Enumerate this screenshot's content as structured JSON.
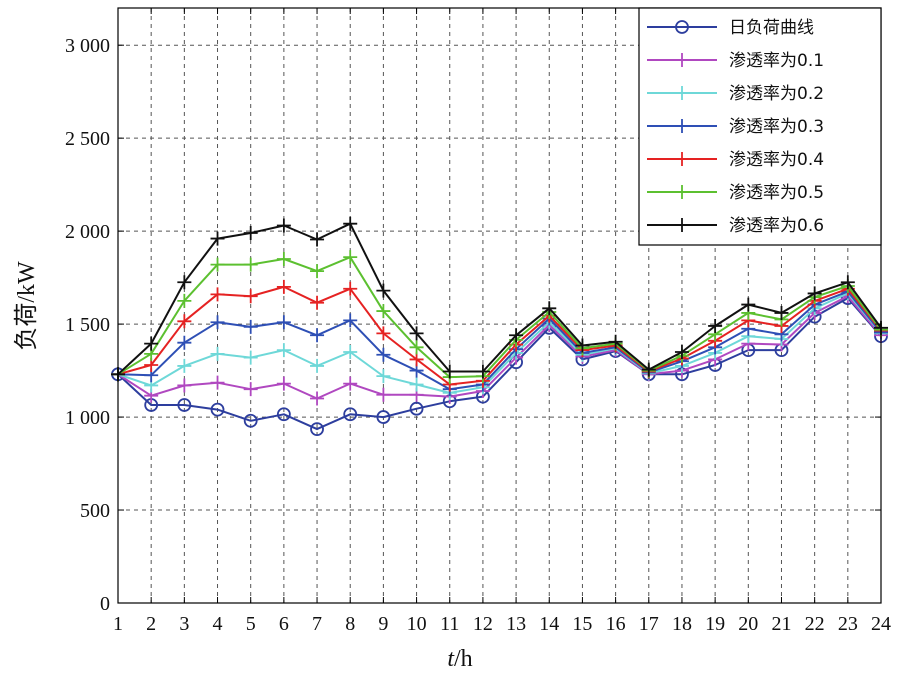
{
  "chart_data": {
    "type": "line",
    "title": "",
    "xlabel_italic": "t",
    "xlabel_rest": "/h",
    "ylabel": "负荷/kW",
    "x": [
      1,
      2,
      3,
      4,
      5,
      6,
      7,
      8,
      9,
      10,
      11,
      12,
      13,
      14,
      15,
      16,
      17,
      18,
      19,
      20,
      21,
      22,
      23,
      24
    ],
    "xlim": [
      1,
      24
    ],
    "ylim": [
      0,
      3200
    ],
    "y_ticks": [
      0,
      500,
      1000,
      1500,
      2000,
      2500,
      3000
    ],
    "y_tick_labels": [
      "0",
      "500",
      "1 000",
      "1 500",
      "2 000",
      "2 500",
      "3 000"
    ],
    "x_tick_labels": [
      "1",
      "2",
      "3",
      "4",
      "5",
      "6",
      "7",
      "8",
      "9",
      "10",
      "11",
      "12",
      "13",
      "14",
      "15",
      "16",
      "17",
      "18",
      "19",
      "20",
      "21",
      "22",
      "23",
      "24"
    ],
    "grid": true,
    "legend_position": "top-right",
    "series": [
      {
        "name": "日负荷曲线",
        "color": "#2d3e9e",
        "marker": "circle",
        "values": [
          1230,
          1065,
          1065,
          1040,
          980,
          1015,
          935,
          1015,
          1000,
          1045,
          1085,
          1110,
          1295,
          1480,
          1310,
          1355,
          1230,
          1230,
          1280,
          1360,
          1360,
          1540,
          1640,
          1435
        ]
      },
      {
        "name": "渗透率为0.1",
        "color": "#b048c0",
        "marker": "plus",
        "values": [
          1230,
          1115,
          1170,
          1185,
          1150,
          1180,
          1100,
          1180,
          1120,
          1120,
          1110,
          1140,
          1320,
          1495,
          1325,
          1360,
          1230,
          1250,
          1310,
          1395,
          1390,
          1560,
          1650,
          1440
        ]
      },
      {
        "name": "渗透率为0.2",
        "color": "#6ed8d8",
        "marker": "plus",
        "values": [
          1230,
          1170,
          1275,
          1340,
          1320,
          1360,
          1275,
          1350,
          1220,
          1175,
          1130,
          1160,
          1345,
          1510,
          1335,
          1370,
          1235,
          1275,
          1345,
          1435,
          1420,
          1585,
          1665,
          1450
        ]
      },
      {
        "name": "渗透率为0.3",
        "color": "#2e4fb5",
        "marker": "plus",
        "values": [
          1230,
          1225,
          1400,
          1510,
          1485,
          1510,
          1440,
          1520,
          1335,
          1250,
          1150,
          1175,
          1365,
          1530,
          1345,
          1375,
          1240,
          1300,
          1375,
          1475,
          1445,
          1605,
          1675,
          1455
        ]
      },
      {
        "name": "渗透率为0.4",
        "color": "#e52222",
        "marker": "plus",
        "values": [
          1230,
          1280,
          1515,
          1660,
          1650,
          1700,
          1615,
          1690,
          1450,
          1310,
          1175,
          1195,
          1390,
          1545,
          1360,
          1385,
          1245,
          1315,
          1410,
          1520,
          1490,
          1625,
          1690,
          1465
        ]
      },
      {
        "name": "渗透率为0.5",
        "color": "#5cc030",
        "marker": "plus",
        "values": [
          1230,
          1340,
          1625,
          1820,
          1820,
          1850,
          1785,
          1860,
          1570,
          1375,
          1215,
          1220,
          1415,
          1565,
          1370,
          1395,
          1250,
          1330,
          1445,
          1560,
          1525,
          1645,
          1705,
          1470
        ]
      },
      {
        "name": "渗透率为0.6",
        "color": "#111111",
        "marker": "plus",
        "values": [
          1230,
          1395,
          1725,
          1960,
          1990,
          2030,
          1955,
          2040,
          1680,
          1450,
          1245,
          1245,
          1440,
          1585,
          1385,
          1405,
          1255,
          1350,
          1490,
          1605,
          1560,
          1665,
          1725,
          1480
        ]
      }
    ]
  }
}
